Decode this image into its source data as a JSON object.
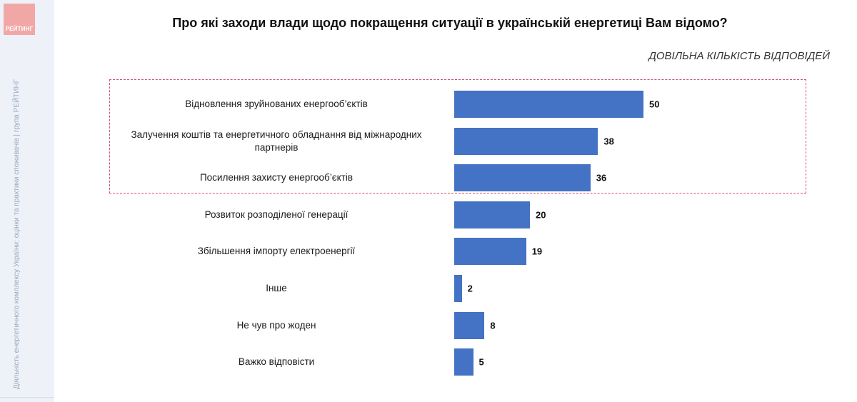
{
  "logo_text": "РЕЙТИНГ",
  "side_text": "Діяльність енергетичного комплексу України: оцінки та практики споживачів | група РЕЙТИНГ",
  "chart_data": {
    "type": "bar",
    "orientation": "horizontal",
    "title": "Про які заходи влади щодо покращення ситуації в українській енергетиці Вам відомо?",
    "subtitle": "ДОВІЛЬНА КІЛЬКІСТЬ ВІДПОВІДЕЙ",
    "categories": [
      "Відновлення зруйнованих енергооб’єктів",
      "Залучення коштів та енергетичного обладнання від міжнародних партнерів",
      "Посилення захисту енергооб’єктів",
      "Розвиток розподіленої генерації",
      "Збільшення імпорту електроенергії",
      "Інше",
      "Не чув про жоден",
      "Важко відповісти"
    ],
    "values": [
      50,
      38,
      36,
      20,
      19,
      2,
      8,
      5
    ],
    "highlighted_categories": [
      0,
      1,
      2
    ],
    "bar_color": "#4472c4",
    "highlight_border_color": "#d0506a",
    "xlim": [
      0,
      50
    ],
    "grid": false,
    "legend": "none"
  }
}
